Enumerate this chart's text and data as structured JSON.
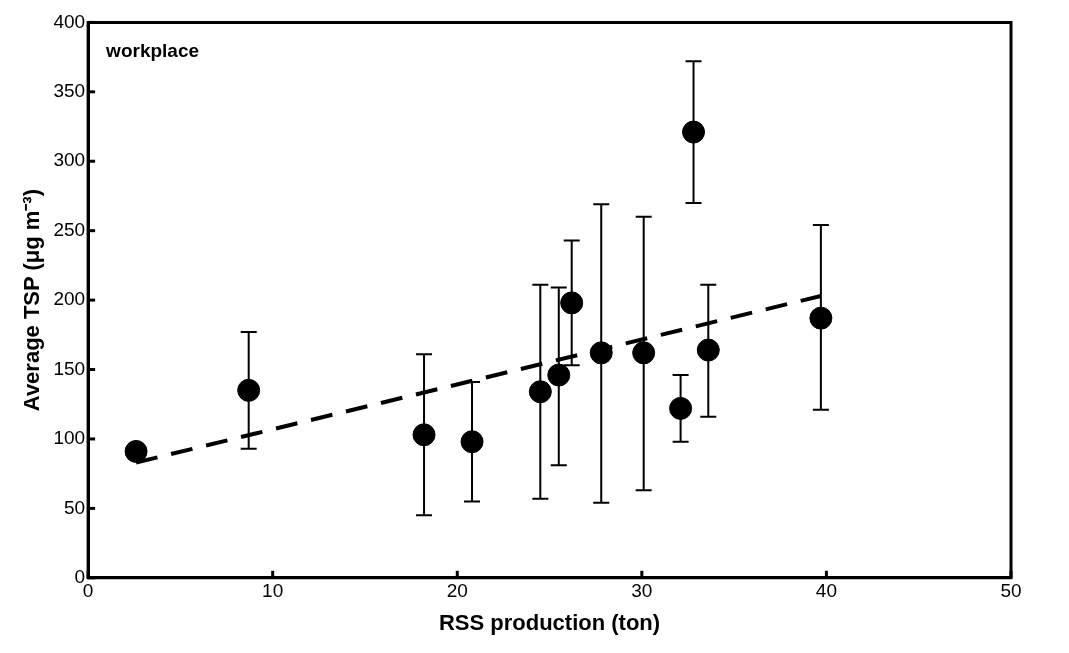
{
  "chart_data": {
    "type": "scatter",
    "xlabel": "RSS production (ton)",
    "ylabel": "Average TSP (μg m⁻³)",
    "annotations": [
      "workplace"
    ],
    "xlim": [
      0,
      50
    ],
    "xticks": [
      0,
      10,
      20,
      30,
      40,
      50
    ],
    "ylim": [
      0,
      400
    ],
    "yticks": [
      0,
      50,
      100,
      150,
      200,
      250,
      300,
      350,
      400
    ],
    "grid": false,
    "legend": false,
    "marker": "circle",
    "series": [
      {
        "color": "#000000",
        "x": [
          2.6,
          8.7,
          18.2,
          20.8,
          24.5,
          25.5,
          26.2,
          27.8,
          30.1,
          32.1,
          32.8,
          33.6,
          39.7
        ],
        "values": [
          91,
          135,
          103,
          98,
          134,
          146,
          198,
          162,
          162,
          122,
          321,
          164,
          187
        ],
        "errors": [
          null,
          [
            93,
            177
          ],
          [
            45,
            161
          ],
          [
            55,
            141
          ],
          [
            57,
            211
          ],
          [
            81,
            209
          ],
          [
            153,
            243
          ],
          [
            54,
            269
          ],
          [
            63,
            260
          ],
          [
            98,
            146
          ],
          [
            270,
            372
          ],
          [
            116,
            211
          ],
          [
            121,
            254
          ]
        ]
      },
      {
        "type": "line",
        "color": "#000000",
        "line_style": "dashed",
        "marker": "none",
        "x": [
          2.6,
          39.7
        ],
        "values": [
          83,
          203
        ]
      }
    ]
  }
}
